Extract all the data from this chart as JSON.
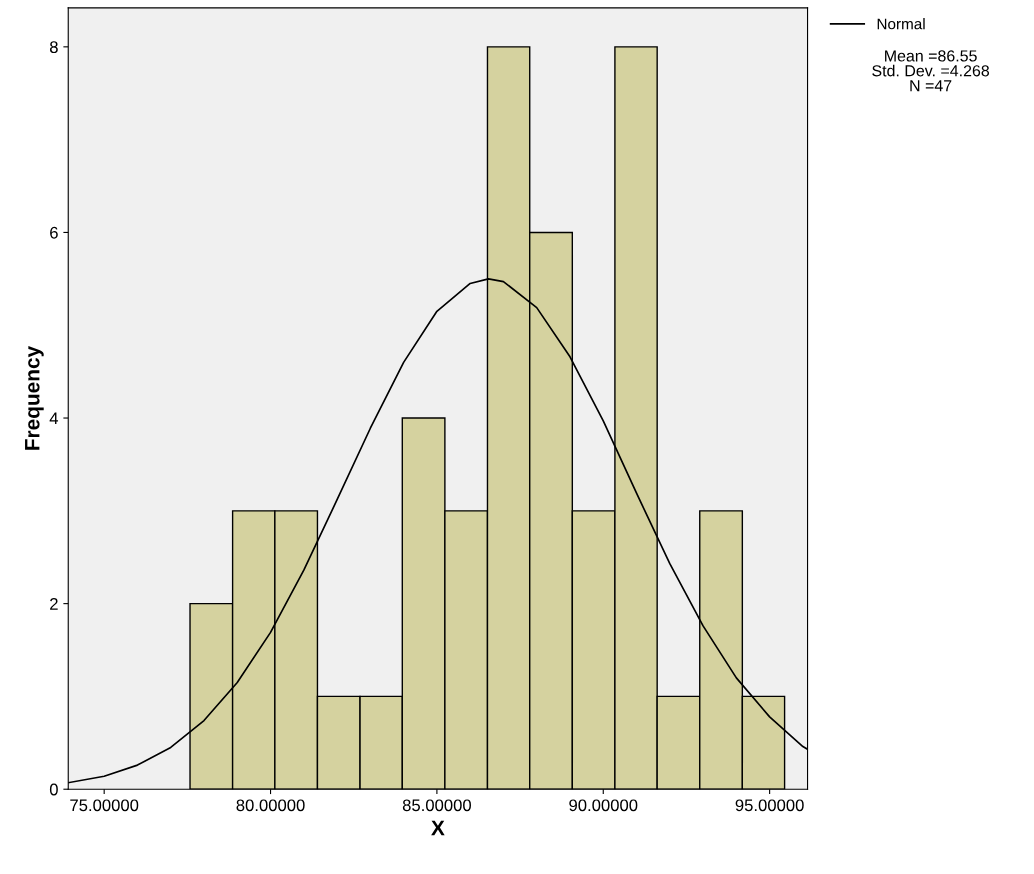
{
  "chart_data": {
    "type": "histogram",
    "xlabel": "X",
    "ylabel": "Frequency",
    "bins": [
      77.58,
      78.86,
      80.13,
      81.41,
      82.69,
      83.96,
      85.24,
      86.52,
      87.79,
      89.07,
      90.35,
      91.62,
      92.9,
      94.18,
      95.45
    ],
    "values": [
      2,
      3,
      3,
      1,
      1,
      4,
      3,
      8,
      6,
      3,
      8,
      1,
      3,
      1
    ],
    "color": "#d5d29f",
    "series": [
      {
        "type": "line",
        "name": "Normal",
        "color": "#000000",
        "x": [
          73.92,
          75,
          76,
          77,
          78,
          79,
          80,
          81,
          82,
          83,
          84,
          85,
          86,
          86.55,
          87,
          88,
          89,
          90,
          91,
          92,
          93,
          94,
          95,
          96,
          96.14
        ],
        "values": [
          0.07,
          0.14,
          0.26,
          0.45,
          0.74,
          1.15,
          1.69,
          2.36,
          3.12,
          3.89,
          4.6,
          5.15,
          5.45,
          5.5,
          5.47,
          5.19,
          4.66,
          3.97,
          3.19,
          2.43,
          1.76,
          1.2,
          0.78,
          0.46,
          0.43
        ]
      }
    ],
    "xlim": [
      73.92,
      96.14
    ],
    "ylim": [
      0,
      8.42
    ],
    "xticks": [
      {
        "value": 75,
        "label": "75.00000"
      },
      {
        "value": 80,
        "label": "80.00000"
      },
      {
        "value": 85,
        "label": "85.00000"
      },
      {
        "value": 90,
        "label": "90.00000"
      },
      {
        "value": 95,
        "label": "95.00000"
      }
    ],
    "yticks": [
      0,
      2,
      4,
      6,
      8
    ],
    "legend": "top right",
    "grid": false,
    "annotations": [
      "Mean =86.55\nStd. Dev. =4.268\nN =47"
    ]
  }
}
